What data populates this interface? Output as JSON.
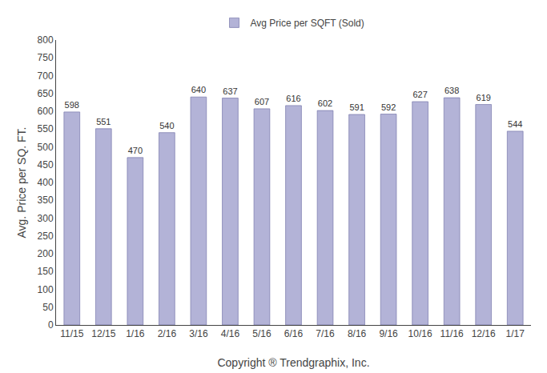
{
  "chart_data": {
    "type": "bar",
    "categories": [
      "11/15",
      "12/15",
      "1/16",
      "2/16",
      "3/16",
      "4/16",
      "5/16",
      "6/16",
      "7/16",
      "8/16",
      "9/16",
      "10/16",
      "11/16",
      "12/16",
      "1/17"
    ],
    "series": [
      {
        "name": "Avg Price per SQFT (Sold)",
        "color": "#b3b3d7",
        "values": [
          598,
          551,
          470,
          540,
          640,
          637,
          607,
          616,
          602,
          591,
          592,
          627,
          638,
          619,
          544
        ]
      }
    ],
    "xlabel": "Copyright ® Trendgraphix, Inc.",
    "ylabel": "Avg. Price per SQ. FT.",
    "ylim": [
      0,
      800
    ],
    "yticks": [
      0,
      50,
      100,
      150,
      200,
      250,
      300,
      350,
      400,
      450,
      500,
      550,
      600,
      650,
      700,
      750,
      800
    ],
    "data_labels": true,
    "legend": "top",
    "grid": false
  }
}
